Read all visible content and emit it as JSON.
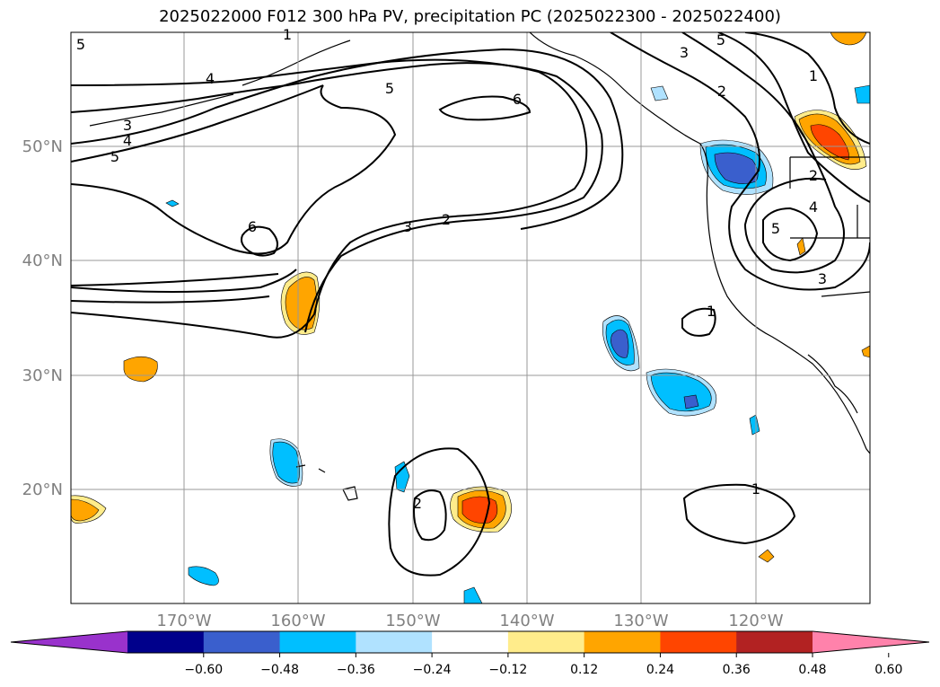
{
  "title": "2025022000 F012 300 hPa PV, precipitation PC (2025022300 - 2025022400)",
  "map": {
    "lat_labels": [
      "50°N",
      "40°N",
      "30°N",
      "20°N"
    ],
    "lon_labels": [
      "170°W",
      "160°W",
      "150°W",
      "140°W",
      "130°W",
      "120°W"
    ],
    "gridlines": true
  },
  "pv_contour_labels": [
    "5",
    "4",
    "3",
    "1",
    "5",
    "6",
    "5",
    "4",
    "3",
    "6",
    "3",
    "2",
    "5",
    "3",
    "2",
    "1",
    "2",
    "4",
    "5",
    "3",
    "1",
    "2",
    "1"
  ],
  "colorbar": {
    "ticks": [
      "−0.60",
      "−0.48",
      "−0.36",
      "−0.24",
      "−0.12",
      "0.12",
      "0.24",
      "0.36",
      "0.48",
      "0.60"
    ],
    "colors": [
      "#9932cc",
      "#00008b",
      "#3a5fcd",
      "#00bfff",
      "#b0e2ff",
      "#ffffff",
      "#ffec8b",
      "#ffa500",
      "#ff4500",
      "#b22222",
      "#ff82ab"
    ]
  }
}
